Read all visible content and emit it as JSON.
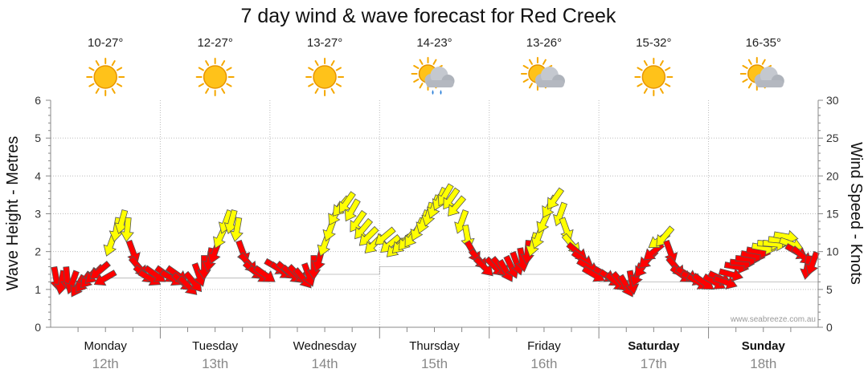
{
  "chart_data": {
    "type": "line",
    "title": "7 day wind & wave forecast for Red Creek",
    "ylabel_left": "Wave Height - Metres",
    "ylabel_right": "Wind Speed - Knots",
    "ylim_left": [
      0,
      6
    ],
    "ylim_right": [
      0,
      30
    ],
    "yticks_left": [
      "0",
      "1",
      "2",
      "3",
      "4",
      "5",
      "6"
    ],
    "yticks_right": [
      "0",
      "5",
      "10",
      "15",
      "20",
      "25",
      "30"
    ],
    "days": [
      {
        "name": "Monday",
        "date": "12th",
        "temp": "10-27°",
        "weather": "sunny",
        "bold": false
      },
      {
        "name": "Tuesday",
        "date": "13th",
        "temp": "12-27°",
        "weather": "sunny",
        "bold": false
      },
      {
        "name": "Wednesday",
        "date": "14th",
        "temp": "13-27°",
        "weather": "sunny",
        "bold": false
      },
      {
        "name": "Thursday",
        "date": "15th",
        "temp": "14-23°",
        "weather": "showers",
        "bold": false
      },
      {
        "name": "Friday",
        "date": "16th",
        "temp": "13-26°",
        "weather": "partly-cloudy",
        "bold": false
      },
      {
        "name": "Saturday",
        "date": "17th",
        "temp": "15-32°",
        "weather": "sunny",
        "bold": true
      },
      {
        "name": "Sunday",
        "date": "18th",
        "temp": "16-35°",
        "weather": "partly-cloudy",
        "bold": true
      }
    ],
    "series": [
      {
        "name": "Wind Speed (knots)",
        "unit": "knots",
        "day_position": [
          0.05,
          0.1,
          0.15,
          0.2,
          0.25,
          0.3,
          0.35,
          0.4,
          0.45,
          0.5,
          0.55,
          0.6,
          0.65,
          0.7,
          0.75,
          0.8,
          0.85,
          0.9,
          0.95,
          1.05,
          1.1,
          1.15,
          1.2,
          1.25,
          1.3,
          1.35,
          1.4,
          1.45,
          1.5,
          1.55,
          1.6,
          1.65,
          1.7,
          1.75,
          1.8,
          1.85,
          1.9,
          1.95,
          2.05,
          2.1,
          2.15,
          2.2,
          2.25,
          2.3,
          2.35,
          2.4,
          2.45,
          2.5,
          2.55,
          2.6,
          2.65,
          2.7,
          2.75,
          2.8,
          2.85,
          2.9,
          2.95,
          3.05,
          3.1,
          3.15,
          3.2,
          3.25,
          3.3,
          3.35,
          3.4,
          3.45,
          3.5,
          3.55,
          3.6,
          3.65,
          3.7,
          3.75,
          3.8,
          3.85,
          3.9,
          3.95,
          4.05,
          4.1,
          4.15,
          4.2,
          4.25,
          4.3,
          4.35,
          4.4,
          4.45,
          4.5,
          4.55,
          4.6,
          4.65,
          4.7,
          4.75,
          4.8,
          4.85,
          4.9,
          4.95,
          5.05,
          5.1,
          5.15,
          5.2,
          5.25,
          5.3,
          5.35,
          5.4,
          5.45,
          5.5,
          5.55,
          5.6,
          5.65,
          5.7,
          5.75,
          5.8,
          5.85,
          5.9,
          5.95,
          6.05,
          6.1,
          6.15,
          6.2,
          6.25,
          6.3,
          6.35,
          6.4,
          6.45,
          6.5,
          6.55,
          6.6,
          6.65,
          6.7,
          6.75,
          6.8,
          6.85,
          6.9,
          6.95
        ],
        "values": [
          6.5,
          6,
          6.5,
          6,
          5.5,
          6,
          6.5,
          7,
          7.5,
          6.5,
          11,
          13,
          14,
          13,
          10,
          8,
          7,
          6.5,
          7,
          7,
          6.5,
          7,
          6,
          5.5,
          6,
          7,
          8,
          9,
          10,
          12,
          14,
          14,
          13,
          10,
          8.5,
          7.5,
          7,
          7,
          8,
          7.5,
          7.5,
          7,
          7,
          6.5,
          7,
          8,
          9,
          11,
          13,
          15,
          16,
          16.5,
          15.5,
          14,
          13,
          12,
          11,
          12,
          11,
          10.5,
          11,
          11.5,
          12,
          13,
          14,
          15,
          16,
          17,
          17.5,
          17,
          16,
          14,
          12,
          10,
          9,
          8,
          8,
          8,
          7.5,
          8,
          8.5,
          9,
          10,
          11,
          12,
          14,
          16,
          17,
          15,
          13,
          11,
          10,
          9,
          8,
          7,
          7,
          6.5,
          6,
          6,
          5.5,
          6,
          7,
          8,
          9,
          10,
          11.5,
          12,
          10,
          8,
          7,
          7,
          6.5,
          6,
          6,
          6,
          6.5,
          6,
          7,
          8,
          8.5,
          9,
          9.5,
          10,
          10.5,
          11,
          11,
          11.5,
          12,
          11,
          10,
          9.5,
          8,
          8.5
        ],
        "rotation_deg": [
          170,
          190,
          175,
          200,
          210,
          215,
          220,
          225,
          230,
          240,
          200,
          190,
          195,
          185,
          160,
          140,
          130,
          120,
          125,
          125,
          120,
          125,
          130,
          135,
          140,
          160,
          180,
          190,
          200,
          205,
          200,
          195,
          190,
          160,
          140,
          130,
          125,
          125,
          120,
          125,
          130,
          130,
          135,
          140,
          160,
          180,
          195,
          200,
          200,
          210,
          220,
          215,
          210,
          215,
          220,
          225,
          225,
          230,
          230,
          225,
          225,
          220,
          215,
          205,
          200,
          195,
          200,
          205,
          210,
          215,
          220,
          200,
          170,
          150,
          140,
          135,
          135,
          140,
          150,
          155,
          160,
          170,
          185,
          195,
          200,
          205,
          210,
          215,
          200,
          160,
          140,
          130,
          125,
          120,
          120,
          120,
          125,
          130,
          140,
          150,
          170,
          200,
          215,
          225,
          230,
          235,
          220,
          160,
          140,
          125,
          120,
          115,
          120,
          125,
          120,
          115,
          110,
          105,
          100,
          95,
          95,
          100,
          100,
          100,
          95,
          95,
          95,
          100,
          110,
          120,
          130,
          190,
          200
        ]
      },
      {
        "name": "Wave Height (metres)",
        "unit": "metres",
        "day": [
          0,
          1,
          2,
          3,
          4,
          5,
          6
        ],
        "values": [
          1.3,
          1.3,
          1.4,
          1.6,
          1.4,
          1.2,
          1.2
        ]
      }
    ],
    "wind_colors": {
      "strong": "#ff0000",
      "moderate": "#ffff00",
      "outline": "#555555"
    },
    "wind_color_threshold_knots": 10.5
  },
  "watermark": "www.seabreeze.com.au"
}
